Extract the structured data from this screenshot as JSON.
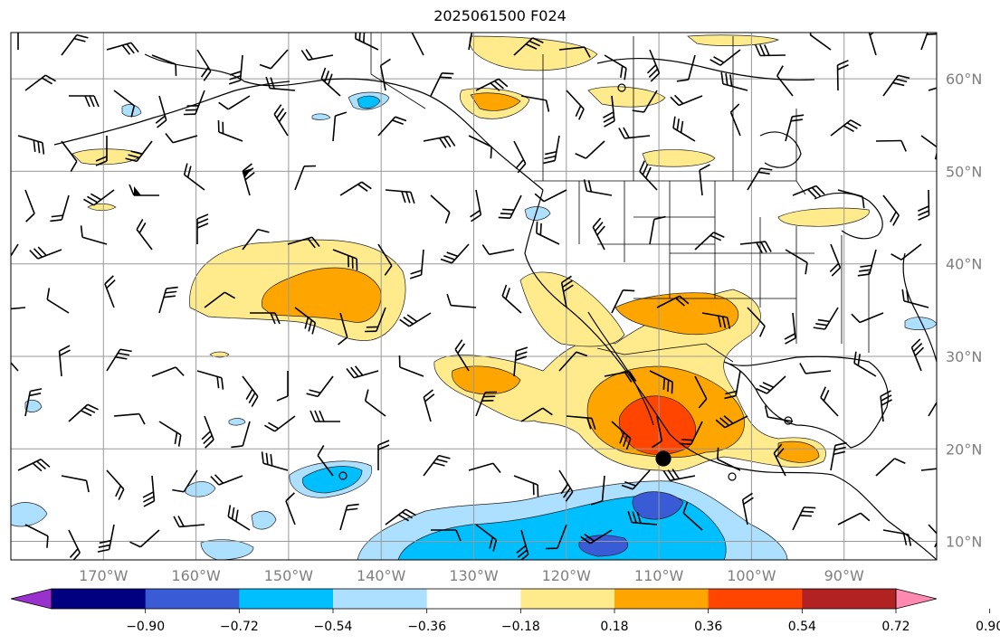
{
  "title": "2025061500 F024",
  "lat_labels": [
    {
      "lat": 60,
      "text": "60°N"
    },
    {
      "lat": 50,
      "text": "50°N"
    },
    {
      "lat": 40,
      "text": "40°N"
    },
    {
      "lat": 30,
      "text": "30°N"
    },
    {
      "lat": 20,
      "text": "20°N"
    },
    {
      "lat": 10,
      "text": "10°N"
    }
  ],
  "lon_labels": [
    {
      "lon": -170,
      "text": "170°W"
    },
    {
      "lon": -160,
      "text": "160°W"
    },
    {
      "lon": -150,
      "text": "150°W"
    },
    {
      "lon": -140,
      "text": "140°W"
    },
    {
      "lon": -130,
      "text": "130°W"
    },
    {
      "lon": -120,
      "text": "120°W"
    },
    {
      "lon": -110,
      "text": "110°W"
    },
    {
      "lon": -100,
      "text": "100°W"
    },
    {
      "lon": -90,
      "text": "90°W"
    }
  ],
  "map_extent": {
    "lon_min": -180,
    "lon_max": -80,
    "lat_min": 8,
    "lat_max": 65
  },
  "colorbar": {
    "ticks": [
      "−0.90",
      "−0.72",
      "−0.54",
      "−0.36",
      "−0.18",
      "0.18",
      "0.36",
      "0.54",
      "0.72",
      "0.90"
    ],
    "bins": [
      {
        "color": "#9932CC"
      },
      {
        "color": "#000080"
      },
      {
        "color": "#3A5BD6"
      },
      {
        "color": "#00BFFF"
      },
      {
        "color": "#ADDFFF"
      },
      {
        "color": "#FFFFFF"
      },
      {
        "color": "#FFEB8C"
      },
      {
        "color": "#FFA500"
      },
      {
        "color": "#FF4500"
      },
      {
        "color": "#B22222"
      },
      {
        "color": "#FF89B0"
      }
    ]
  }
}
